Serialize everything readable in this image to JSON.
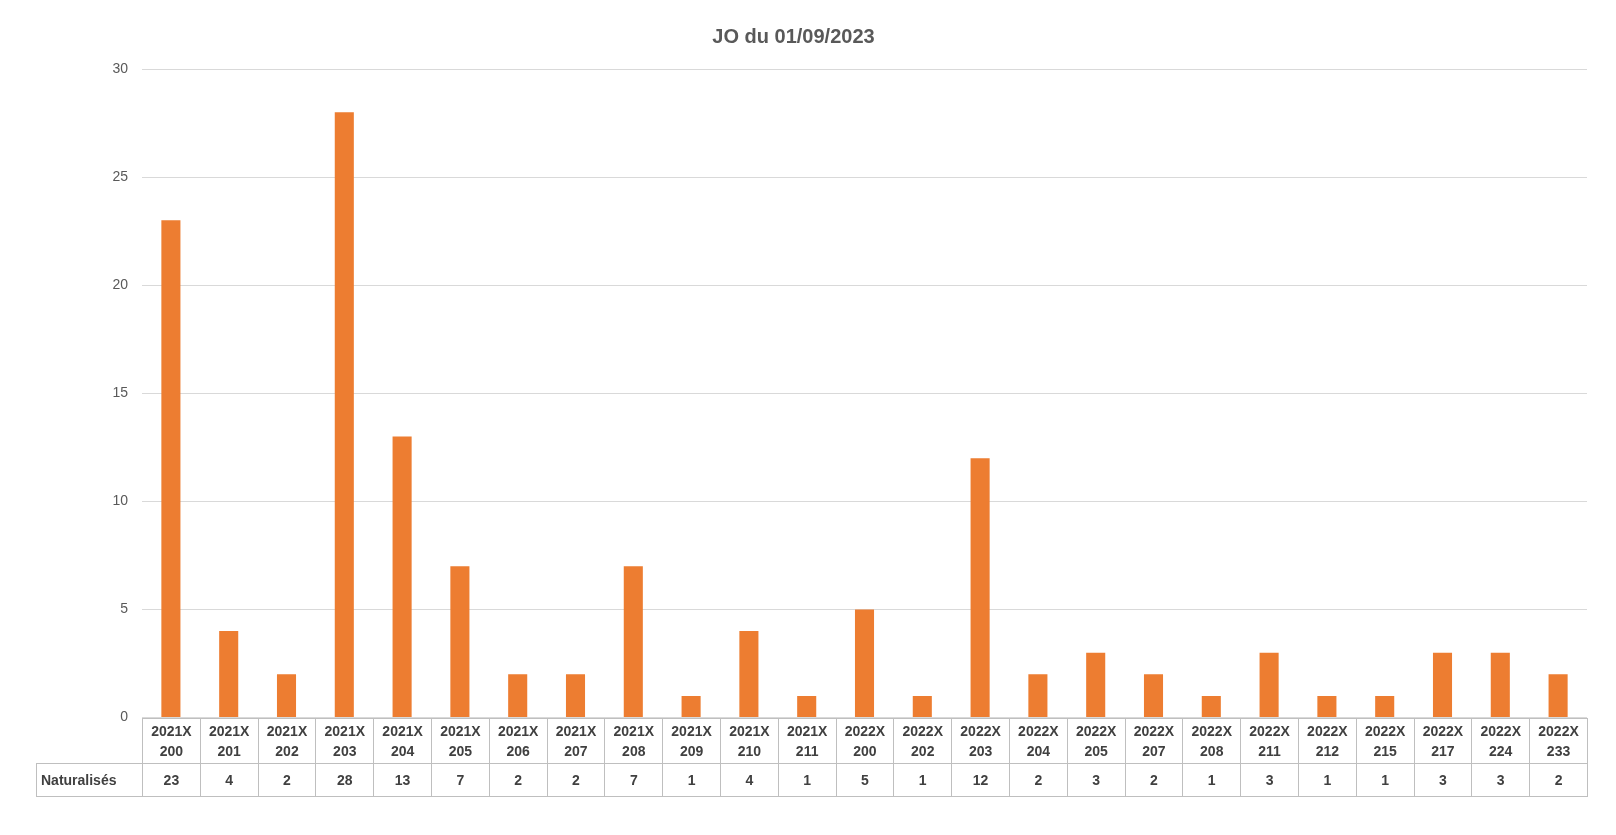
{
  "chart_data": {
    "type": "bar",
    "title": "JO du 01/09/2023",
    "categories": [
      "2021X 200",
      "2021X 201",
      "2021X 202",
      "2021X 203",
      "2021X 204",
      "2021X 205",
      "2021X 206",
      "2021X 207",
      "2021X 208",
      "2021X 209",
      "2021X 210",
      "2021X 211",
      "2022X 200",
      "2022X 202",
      "2022X 203",
      "2022X 204",
      "2022X 205",
      "2022X 207",
      "2022X 208",
      "2022X 211",
      "2022X 212",
      "2022X 215",
      "2022X 217",
      "2022X 224",
      "2022X 233"
    ],
    "series": [
      {
        "name": "Naturalisés",
        "color": "#ed7d31",
        "values": [
          23,
          4,
          2,
          28,
          13,
          7,
          2,
          2,
          7,
          1,
          4,
          1,
          5,
          1,
          12,
          2,
          3,
          2,
          1,
          3,
          1,
          1,
          3,
          3,
          2
        ]
      }
    ],
    "ylim": [
      0,
      30
    ],
    "yticks": [
      0,
      5,
      10,
      15,
      20,
      25,
      30
    ],
    "grid": "y",
    "legend": false,
    "data_labels": true
  }
}
